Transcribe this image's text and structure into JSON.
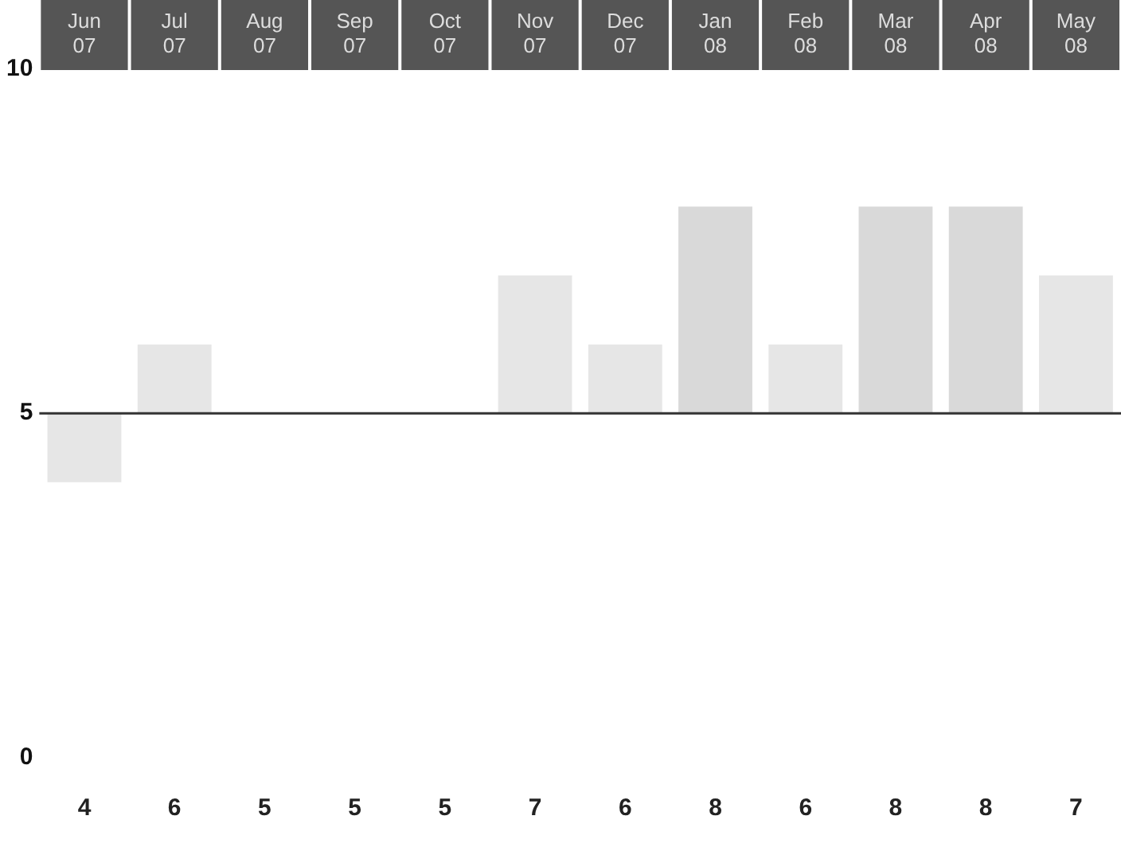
{
  "chart_data": {
    "type": "bar",
    "categories": [
      "Jun 07",
      "Jul 07",
      "Aug 07",
      "Sep 07",
      "Oct 07",
      "Nov 07",
      "Dec 07",
      "Jan 08",
      "Feb 08",
      "Mar 08",
      "Apr 08",
      "May 08"
    ],
    "base": [
      5,
      5,
      null,
      null,
      null,
      5,
      5,
      5,
      5,
      5,
      5,
      5
    ],
    "values": [
      -1,
      1,
      null,
      null,
      null,
      2,
      1,
      3,
      1,
      3,
      3,
      2
    ],
    "value_labels": [
      "4",
      "6",
      "5",
      "5",
      "5",
      "7",
      "6",
      "8",
      "6",
      "8",
      "8",
      "7"
    ],
    "colors": [
      "#e6e6e6",
      "#e6e6e6",
      "#e6e6e6",
      "#e6e6e6",
      "#e6e6e6",
      "#e6e6e6",
      "#e6e6e6",
      "#d9d9d9",
      "#e6e6e6",
      "#d9d9d9",
      "#d9d9d9",
      "#e6e6e6"
    ],
    "ylim": [
      0,
      10
    ],
    "yticks": [
      0,
      5,
      10
    ],
    "grid": false,
    "legend": false,
    "ref_lines": [
      {
        "axis": "y",
        "value": 5,
        "color": "#333333"
      }
    ]
  }
}
